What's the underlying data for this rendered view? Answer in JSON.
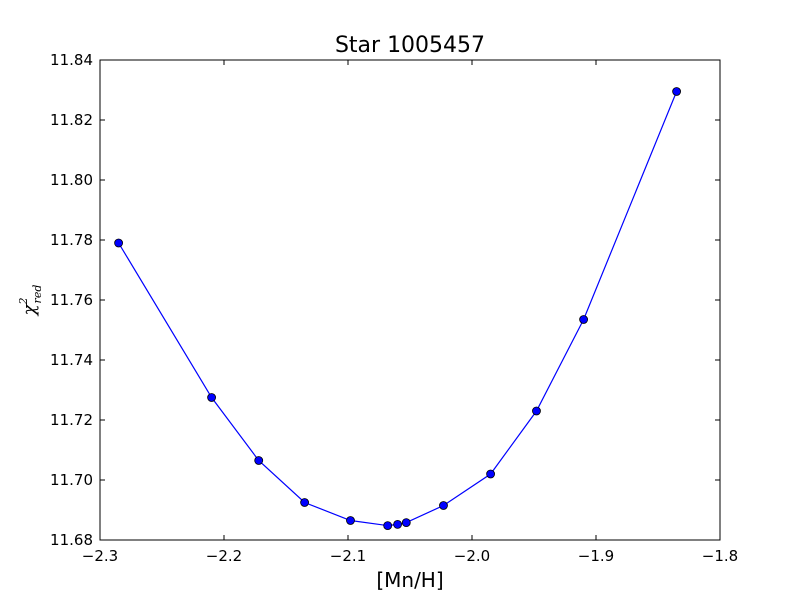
{
  "chart_data": {
    "type": "line",
    "title": "Star 1005457",
    "xlabel": "[Mn/H]",
    "ylabel": {
      "base": "χ",
      "superscript": "2",
      "subscript": "red"
    },
    "xlim": [
      -2.3,
      -1.8
    ],
    "ylim": [
      11.68,
      11.84
    ],
    "xticks": [
      -2.3,
      -2.2,
      -2.1,
      -2.0,
      -1.9,
      -1.8
    ],
    "xtick_labels": [
      "−2.3",
      "−2.2",
      "−2.1",
      "−2.0",
      "−1.9",
      "−1.8"
    ],
    "yticks": [
      11.68,
      11.7,
      11.72,
      11.74,
      11.76,
      11.78,
      11.8,
      11.82,
      11.84
    ],
    "ytick_labels": [
      "11.68",
      "11.70",
      "11.72",
      "11.74",
      "11.76",
      "11.78",
      "11.80",
      "11.82",
      "11.84"
    ],
    "grid": false,
    "legend": false,
    "series": [
      {
        "color": "#0000ff",
        "marker": "circle",
        "x": [
          -2.285,
          -2.21,
          -2.172,
          -2.135,
          -2.098,
          -2.068,
          -2.06,
          -2.053,
          -2.023,
          -1.985,
          -1.948,
          -1.91,
          -1.835
        ],
        "y": [
          11.779,
          11.7275,
          11.7065,
          11.6925,
          11.6865,
          11.6848,
          11.6852,
          11.6858,
          11.6915,
          11.702,
          11.723,
          11.7535,
          11.8295
        ]
      }
    ]
  }
}
